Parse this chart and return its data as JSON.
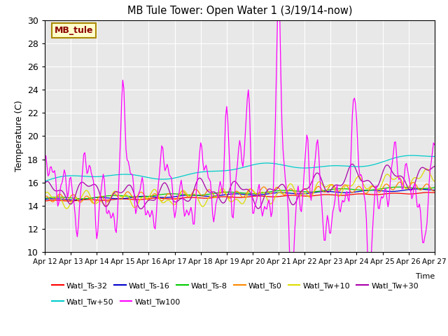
{
  "title": "MB Tule Tower: Open Water 1 (3/19/14-now)",
  "ylabel": "Temperature (C)",
  "ylim": [
    10,
    30
  ],
  "yticks": [
    10,
    12,
    14,
    16,
    18,
    20,
    22,
    24,
    26,
    28,
    30
  ],
  "bg_color": "#e8e8e8",
  "series": [
    {
      "name": "Watl_Ts-32",
      "color": "#ff0000"
    },
    {
      "name": "Watl_Ts-16",
      "color": "#0000cc"
    },
    {
      "name": "Watl_Ts-8",
      "color": "#00cc00"
    },
    {
      "name": "Watl_Ts0",
      "color": "#ff8800"
    },
    {
      "name": "Watl_Tw+10",
      "color": "#dddd00"
    },
    {
      "name": "Watl_Tw+30",
      "color": "#aa00aa"
    },
    {
      "name": "Watl_Tw+50",
      "color": "#00cccc"
    },
    {
      "name": "Watl_Tw100",
      "color": "#ff00ff"
    }
  ],
  "xtick_labels": [
    "Apr 12",
    "Apr 13",
    "Apr 14",
    "Apr 15",
    "Apr 16",
    "Apr 17",
    "Apr 18",
    "Apr 19",
    "Apr 20",
    "Apr 21",
    "Apr 22",
    "Apr 23",
    "Apr 24",
    "Apr 25",
    "Apr 26",
    "Apr 27"
  ],
  "xtick_positions": [
    0,
    24,
    48,
    72,
    96,
    120,
    144,
    168,
    192,
    216,
    240,
    264,
    288,
    312,
    336,
    360
  ],
  "annotation_text": "MB_tule",
  "annotation_color": "#8b0000",
  "annotation_bg": "#ffffcc",
  "annotation_border": "#aa8800"
}
